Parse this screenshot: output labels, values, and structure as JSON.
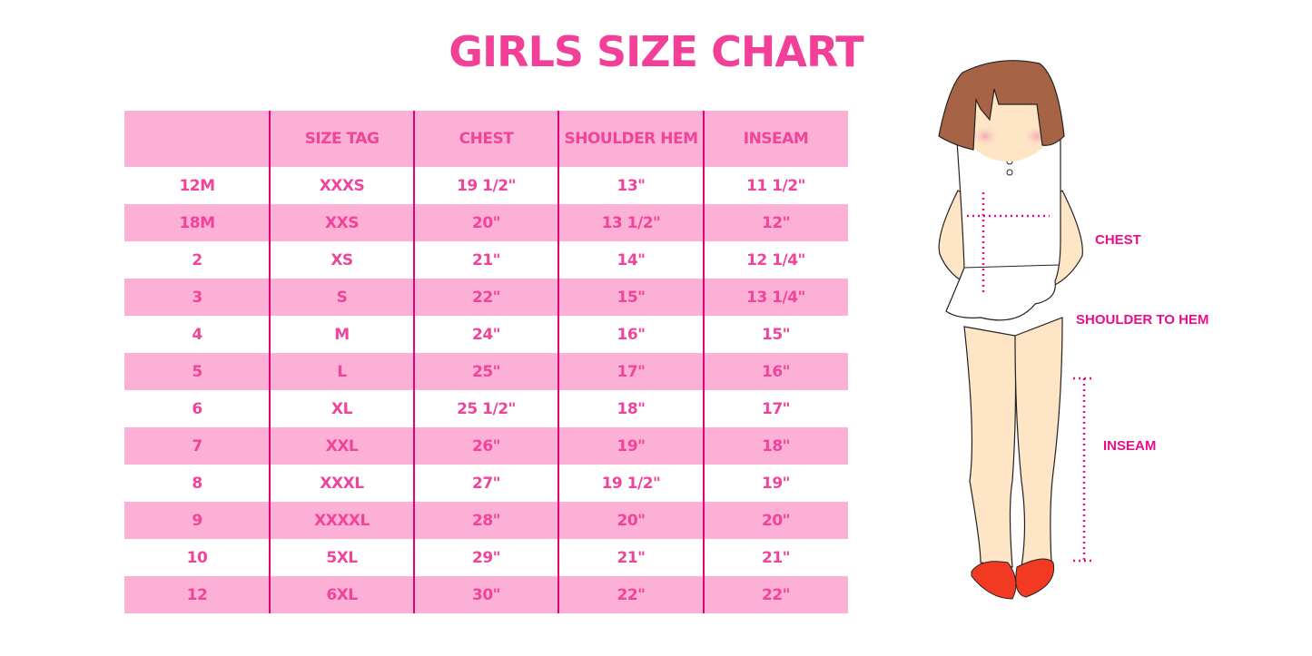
{
  "title": "GIRLS SIZE CHART",
  "table": {
    "headers": [
      "",
      "SIZE TAG",
      "CHEST",
      "SHOULDER HEM",
      "INSEAM"
    ],
    "rows": [
      [
        "12M",
        "XXXS",
        "19 1/2\"",
        "13\"",
        "11 1/2\""
      ],
      [
        "18M",
        "XXS",
        "20\"",
        "13 1/2\"",
        "12\""
      ],
      [
        "2",
        "XS",
        "21\"",
        "14\"",
        "12 1/4\""
      ],
      [
        "3",
        "S",
        "22\"",
        "15\"",
        "13 1/4\""
      ],
      [
        "4",
        "M",
        "24\"",
        "16\"",
        "15\""
      ],
      [
        "5",
        "L",
        "25\"",
        "17\"",
        "16\""
      ],
      [
        "6",
        "XL",
        "25 1/2\"",
        "18\"",
        "17\""
      ],
      [
        "7",
        "XXL",
        "26\"",
        "19\"",
        "18\""
      ],
      [
        "8",
        "XXXL",
        "27\"",
        "19 1/2\"",
        "19\""
      ],
      [
        "9",
        "XXXXL",
        "28\"",
        "20\"",
        "20\""
      ],
      [
        "10",
        "5XL",
        "29\"",
        "21\"",
        "21\""
      ],
      [
        "12",
        "6XL",
        "30\"",
        "22\"",
        "22\""
      ]
    ]
  },
  "illustration": {
    "labels": {
      "chest": "CHEST",
      "shoulder_to_hem": "SHOULDER TO HEM",
      "inseam": "INSEAM"
    }
  },
  "colors": {
    "accent": "#f0449a",
    "row_pink": "#fdb0d6",
    "divider": "#e6007e"
  }
}
